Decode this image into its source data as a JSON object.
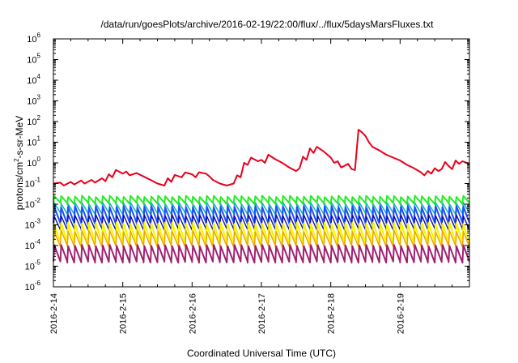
{
  "chart_data": {
    "type": "line",
    "title": "/data/run/goesPlots/archive/2016-02-19/22:00/flux/../flux/5daysMarsFluxes.txt",
    "ylabel": {
      "prefix": "protons/cm",
      "sup": "2",
      "suffix": "-s-sr-MeV"
    },
    "xlabel": "Coordinated Universal Time (UTC)",
    "yscale": "log",
    "ylim": [
      1e-06,
      1000000.0
    ],
    "yticks": [
      {
        "base": "10",
        "exp": "-6",
        "value": -6
      },
      {
        "base": "10",
        "exp": "-5",
        "value": -5
      },
      {
        "base": "10",
        "exp": "-4",
        "value": -4
      },
      {
        "base": "10",
        "exp": "-3",
        "value": -3
      },
      {
        "base": "10",
        "exp": "-2",
        "value": -2
      },
      {
        "base": "10",
        "exp": "-1",
        "value": -1
      },
      {
        "base": "10",
        "exp": "0",
        "value": 0
      },
      {
        "base": "10",
        "exp": "1",
        "value": 1
      },
      {
        "base": "10",
        "exp": "2",
        "value": 2
      },
      {
        "base": "10",
        "exp": "3",
        "value": 3
      },
      {
        "base": "10",
        "exp": "4",
        "value": 4
      },
      {
        "base": "10",
        "exp": "5",
        "value": 5
      },
      {
        "base": "10",
        "exp": "6",
        "value": 6
      }
    ],
    "xlim": [
      "2016-02-14",
      "2016-02-20"
    ],
    "xticks": [
      "2016-2-14",
      "2016-2-15",
      "2016-2-16",
      "2016-2-17",
      "2016-2-18",
      "2016-2-19"
    ],
    "grid": false,
    "series": [
      {
        "color": "#e8001c",
        "width": 2,
        "points": [
          [
            0.0,
            0.1
          ],
          [
            0.1,
            0.11
          ],
          [
            0.15,
            0.08
          ],
          [
            0.25,
            0.12
          ],
          [
            0.3,
            0.09
          ],
          [
            0.4,
            0.14
          ],
          [
            0.45,
            0.1
          ],
          [
            0.55,
            0.15
          ],
          [
            0.6,
            0.11
          ],
          [
            0.7,
            0.18
          ],
          [
            0.75,
            0.13
          ],
          [
            0.8,
            0.28
          ],
          [
            0.85,
            0.2
          ],
          [
            0.9,
            0.45
          ],
          [
            1.0,
            0.3
          ],
          [
            1.05,
            0.38
          ],
          [
            1.1,
            0.25
          ],
          [
            1.2,
            0.32
          ],
          [
            1.3,
            0.22
          ],
          [
            1.4,
            0.15
          ],
          [
            1.5,
            0.1
          ],
          [
            1.6,
            0.08
          ],
          [
            1.65,
            0.18
          ],
          [
            1.7,
            0.12
          ],
          [
            1.75,
            0.26
          ],
          [
            1.85,
            0.2
          ],
          [
            1.9,
            0.34
          ],
          [
            2.0,
            0.28
          ],
          [
            2.05,
            0.2
          ],
          [
            2.1,
            0.35
          ],
          [
            2.2,
            0.3
          ],
          [
            2.25,
            0.22
          ],
          [
            2.3,
            0.15
          ],
          [
            2.4,
            0.1
          ],
          [
            2.5,
            0.08
          ],
          [
            2.6,
            0.1
          ],
          [
            2.65,
            0.25
          ],
          [
            2.7,
            0.2
          ],
          [
            2.75,
            1.0
          ],
          [
            2.8,
            0.8
          ],
          [
            2.85,
            1.8
          ],
          [
            2.95,
            1.2
          ],
          [
            3.0,
            1.4
          ],
          [
            3.05,
            1.0
          ],
          [
            3.1,
            2.5
          ],
          [
            3.2,
            1.5
          ],
          [
            3.3,
            1.0
          ],
          [
            3.4,
            0.6
          ],
          [
            3.5,
            0.4
          ],
          [
            3.55,
            0.55
          ],
          [
            3.6,
            2.0
          ],
          [
            3.65,
            1.4
          ],
          [
            3.7,
            5.0
          ],
          [
            3.75,
            3.0
          ],
          [
            3.8,
            6.0
          ],
          [
            3.9,
            3.5
          ],
          [
            4.0,
            1.8
          ],
          [
            4.05,
            1.0
          ],
          [
            4.1,
            1.2
          ],
          [
            4.15,
            0.6
          ],
          [
            4.25,
            0.9
          ],
          [
            4.3,
            0.5
          ],
          [
            4.35,
            0.45
          ],
          [
            4.4,
            40.0
          ],
          [
            4.45,
            30.0
          ],
          [
            4.5,
            20.0
          ],
          [
            4.55,
            10.0
          ],
          [
            4.6,
            6.0
          ],
          [
            4.7,
            4.0
          ],
          [
            4.8,
            2.5
          ],
          [
            4.9,
            1.8
          ],
          [
            5.0,
            1.3
          ],
          [
            5.1,
            0.8
          ],
          [
            5.2,
            0.55
          ],
          [
            5.3,
            0.35
          ],
          [
            5.35,
            0.25
          ],
          [
            5.4,
            0.4
          ],
          [
            5.45,
            0.3
          ],
          [
            5.5,
            0.55
          ],
          [
            5.55,
            0.4
          ],
          [
            5.6,
            0.5
          ],
          [
            5.65,
            1.1
          ],
          [
            5.7,
            0.7
          ],
          [
            5.75,
            0.5
          ],
          [
            5.8,
            1.3
          ],
          [
            5.85,
            0.9
          ],
          [
            5.9,
            1.2
          ],
          [
            6.0,
            0.9
          ]
        ]
      },
      {
        "color": "#22ee22",
        "width": 2,
        "type": "sawtooth",
        "peak": 0.024,
        "trough": 0.011,
        "period": 0.1
      },
      {
        "color": "#1ab6b6",
        "width": 1.6,
        "type": "sawtooth",
        "peak": 0.011,
        "trough": 0.0035,
        "period": 0.1
      },
      {
        "color": "#1f4fff",
        "width": 2,
        "type": "sawtooth",
        "peak": 0.0075,
        "trough": 0.0012,
        "period": 0.1
      },
      {
        "color": "#1010a0",
        "width": 1.4,
        "type": "sawtooth",
        "peak": 0.0028,
        "trough": 0.0006,
        "period": 0.1
      },
      {
        "color": "#f5f500",
        "width": 2.2,
        "type": "sawtooth",
        "peak": 0.0012,
        "trough": 0.00013,
        "period": 0.1
      },
      {
        "color": "#f0a000",
        "width": 1.4,
        "type": "sawtooth",
        "peak": 0.0005,
        "trough": 9e-05,
        "period": 0.1
      },
      {
        "color": "#a02070",
        "width": 2,
        "type": "sawtooth",
        "peak": 0.0001,
        "trough": 1.6e-05,
        "period": 0.1
      }
    ]
  }
}
